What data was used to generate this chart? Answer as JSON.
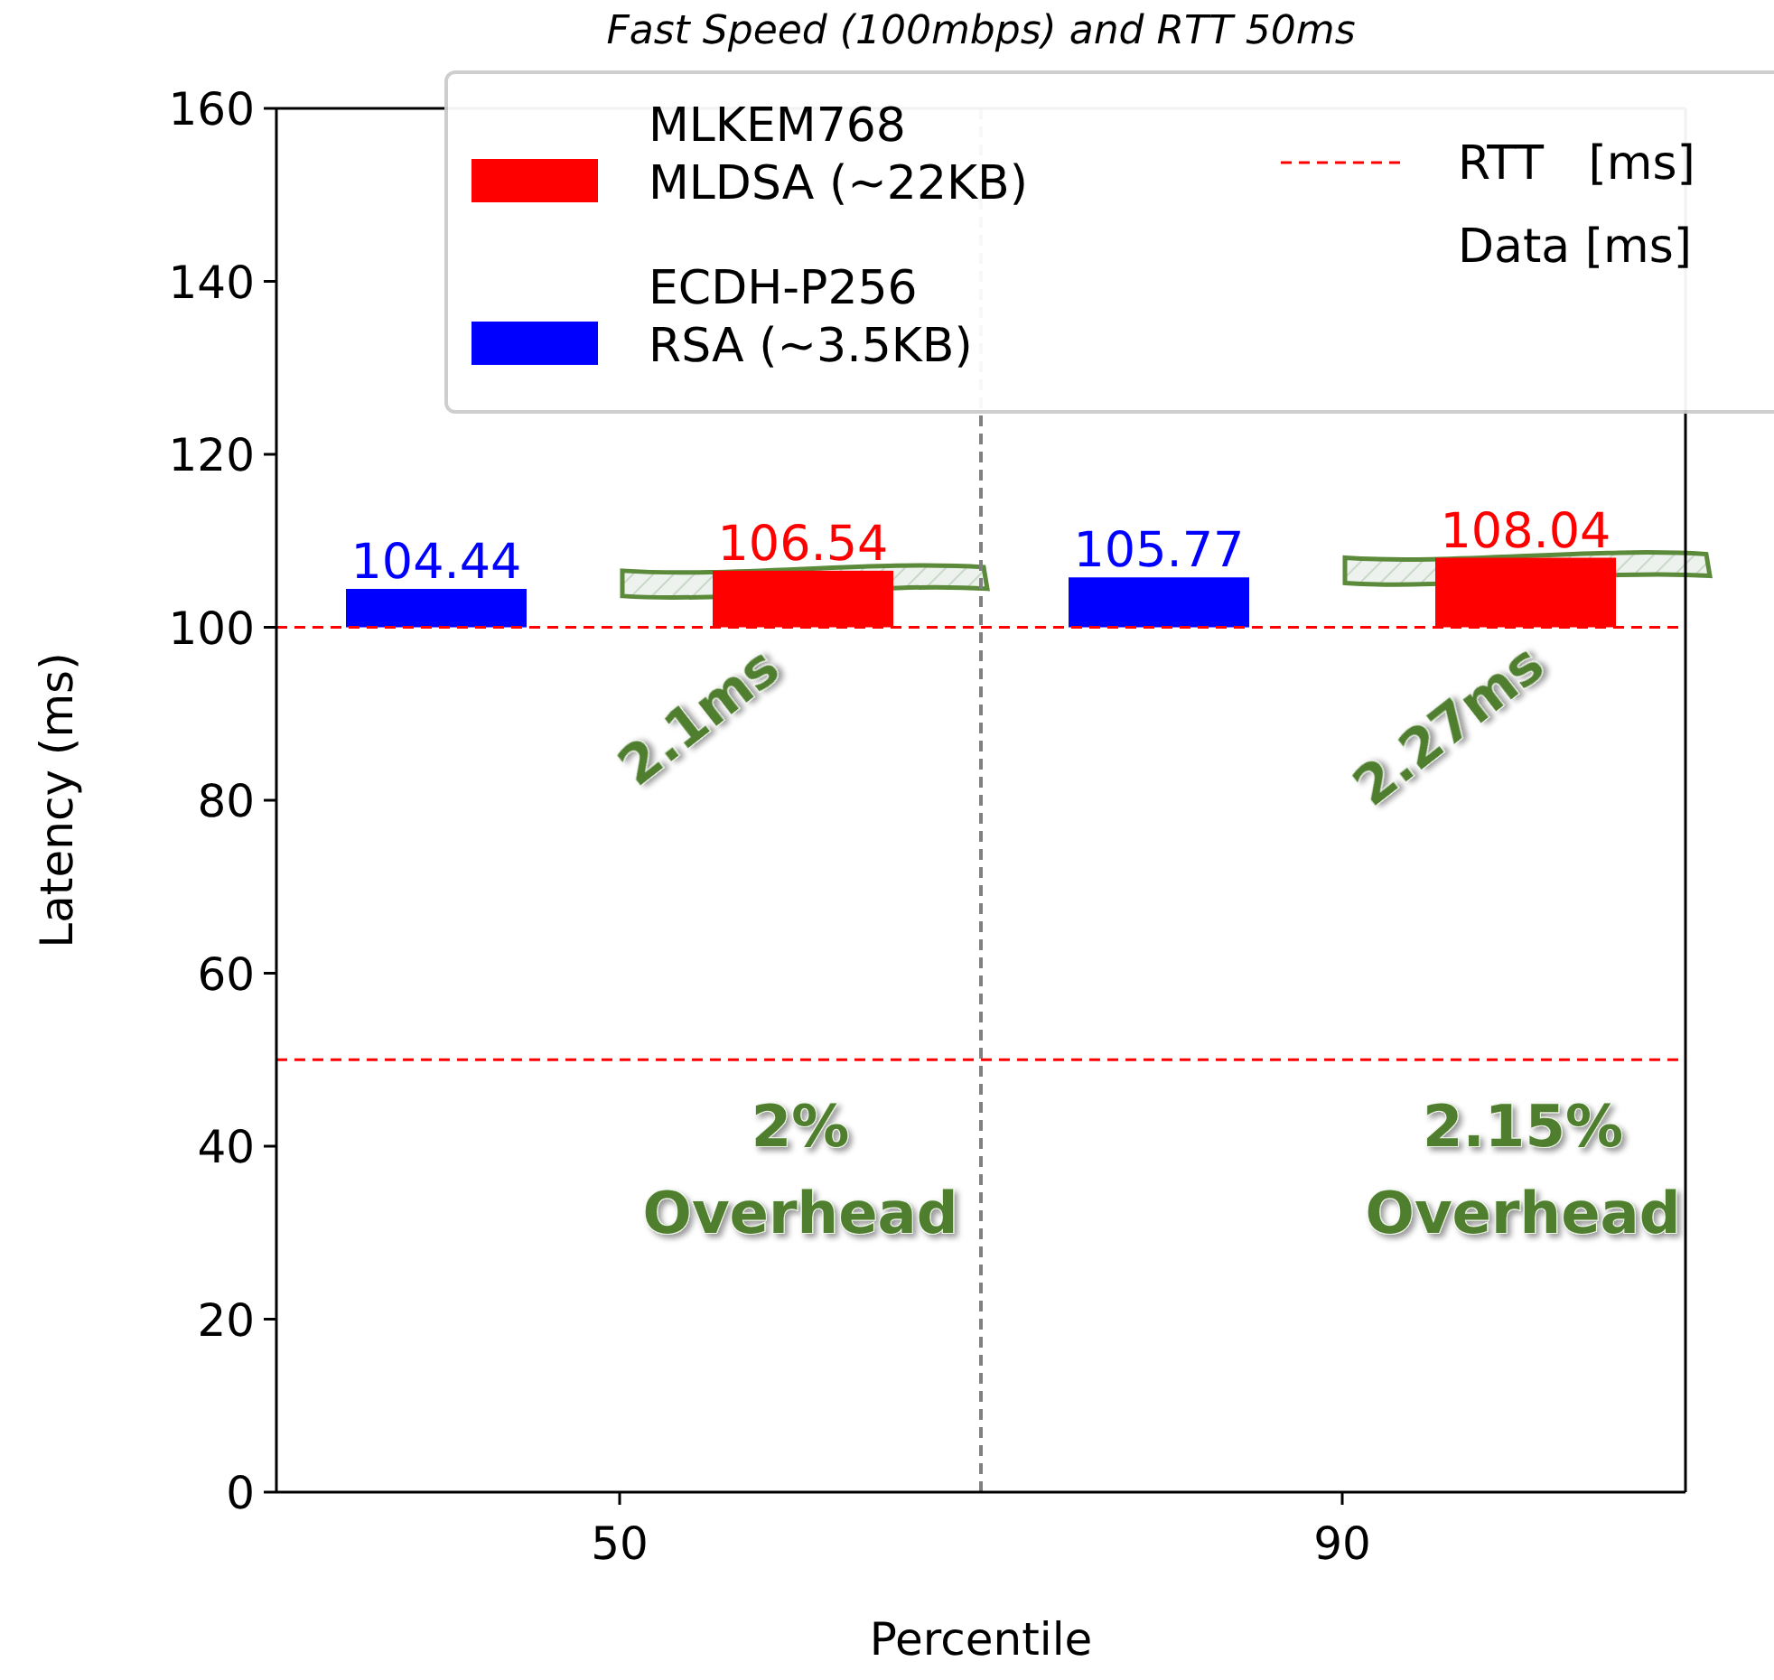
{
  "chart_data": {
    "type": "bar",
    "title": "Fast Speed (100mbps) and RTT 50ms",
    "xlabel": "Percentile",
    "ylabel": "Latency (ms)",
    "categories": [
      "50",
      "90"
    ],
    "series": [
      {
        "name": "MLKEM768\nMLDSA (~22KB)",
        "color": "#ff0000",
        "base": [
          100,
          100
        ],
        "values": [
          6.54,
          8.04
        ],
        "value_labels": [
          "106.54",
          "108.04"
        ]
      },
      {
        "name": "ECDH-P256\nRSA (~3.5KB)",
        "color": "#0000ff",
        "base": [
          100,
          100
        ],
        "values": [
          4.44,
          5.77
        ],
        "value_labels": [
          "104.44",
          "105.77"
        ]
      }
    ],
    "ylim": [
      0,
      160
    ],
    "yticks": [
      0,
      20,
      40,
      60,
      80,
      100,
      120,
      140,
      160
    ],
    "ref_lines": [
      {
        "axis": "y",
        "value": 100,
        "label": "RTT   [ms]",
        "color": "#ff0000",
        "line_style": "dashed"
      },
      {
        "axis": "y",
        "value": 50,
        "label": null,
        "color": "#ff0000",
        "line_style": "dashed"
      }
    ],
    "annotations": [
      "Data [ms]",
      "2.1ms",
      "2.27ms",
      "2%\nOverhead",
      "2.15%\nOverhead"
    ],
    "legend": "top right",
    "grid": false
  }
}
